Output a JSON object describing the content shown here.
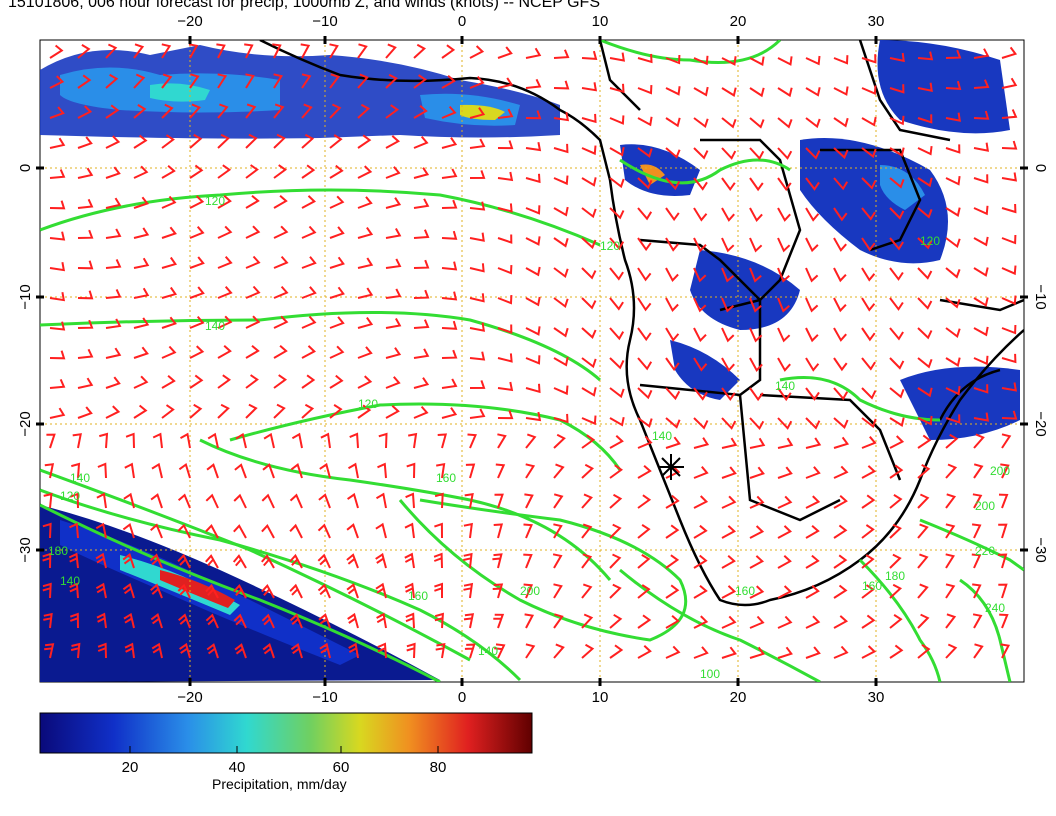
{
  "title": "15101806, 006 hour forecast for precip, 1000mb Z, and winds (knots) -- NCEP GFS",
  "map": {
    "lon_range": [
      -30,
      40
    ],
    "lat_range": [
      -40,
      10
    ],
    "x_ticks_top": [
      "−20",
      "−10",
      "0",
      "10",
      "20",
      "30"
    ],
    "x_ticks_bottom": [
      "−20",
      "−10",
      "0",
      "10",
      "20",
      "30"
    ],
    "y_ticks_left": [
      "0",
      "−10",
      "−20",
      "−30"
    ],
    "y_ticks_right": [
      "0",
      "−10",
      "−20",
      "−30"
    ],
    "contour_labels": [
      "120",
      "120",
      "140",
      "120",
      "140",
      "160",
      "180",
      "200",
      "140",
      "120",
      "100",
      "160",
      "140",
      "200",
      "200",
      "220",
      "240",
      "160",
      "180",
      "140",
      "120",
      "160",
      "140"
    ],
    "grid": true,
    "grid_color": "#e0b020",
    "contour_color": "#33dd33",
    "barb_color": "#ff2020",
    "coast_color": "#000000",
    "marker": "star-cross"
  },
  "colorbar": {
    "ticks": [
      "20",
      "40",
      "60",
      "80"
    ],
    "label": "Precipitation, mm/day",
    "range": [
      0,
      100
    ]
  }
}
